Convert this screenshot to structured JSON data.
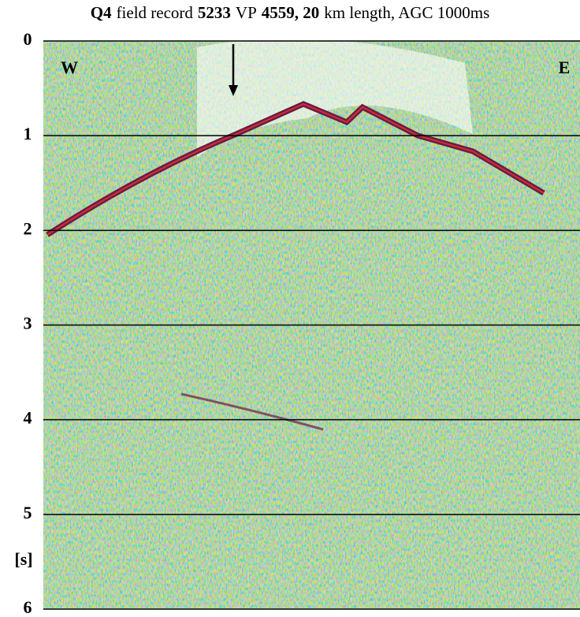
{
  "chart_data": {
    "type": "seismic",
    "title": [
      {
        "text": "Q4",
        "bold": true
      },
      {
        "text": "field record",
        "bold": false
      },
      {
        "text": "5233",
        "bold": true
      },
      {
        "text": "VP",
        "bold": false
      },
      {
        "text": "4559, 20",
        "bold": true
      },
      {
        "text": "km length, AGC 1000ms",
        "bold": false
      }
    ],
    "ylim": [
      0,
      6
    ],
    "yticks": [
      0,
      1,
      2,
      3,
      4,
      5,
      6
    ],
    "y_label": "[s]",
    "grid": true,
    "annotations": [
      "W",
      "E"
    ]
  }
}
